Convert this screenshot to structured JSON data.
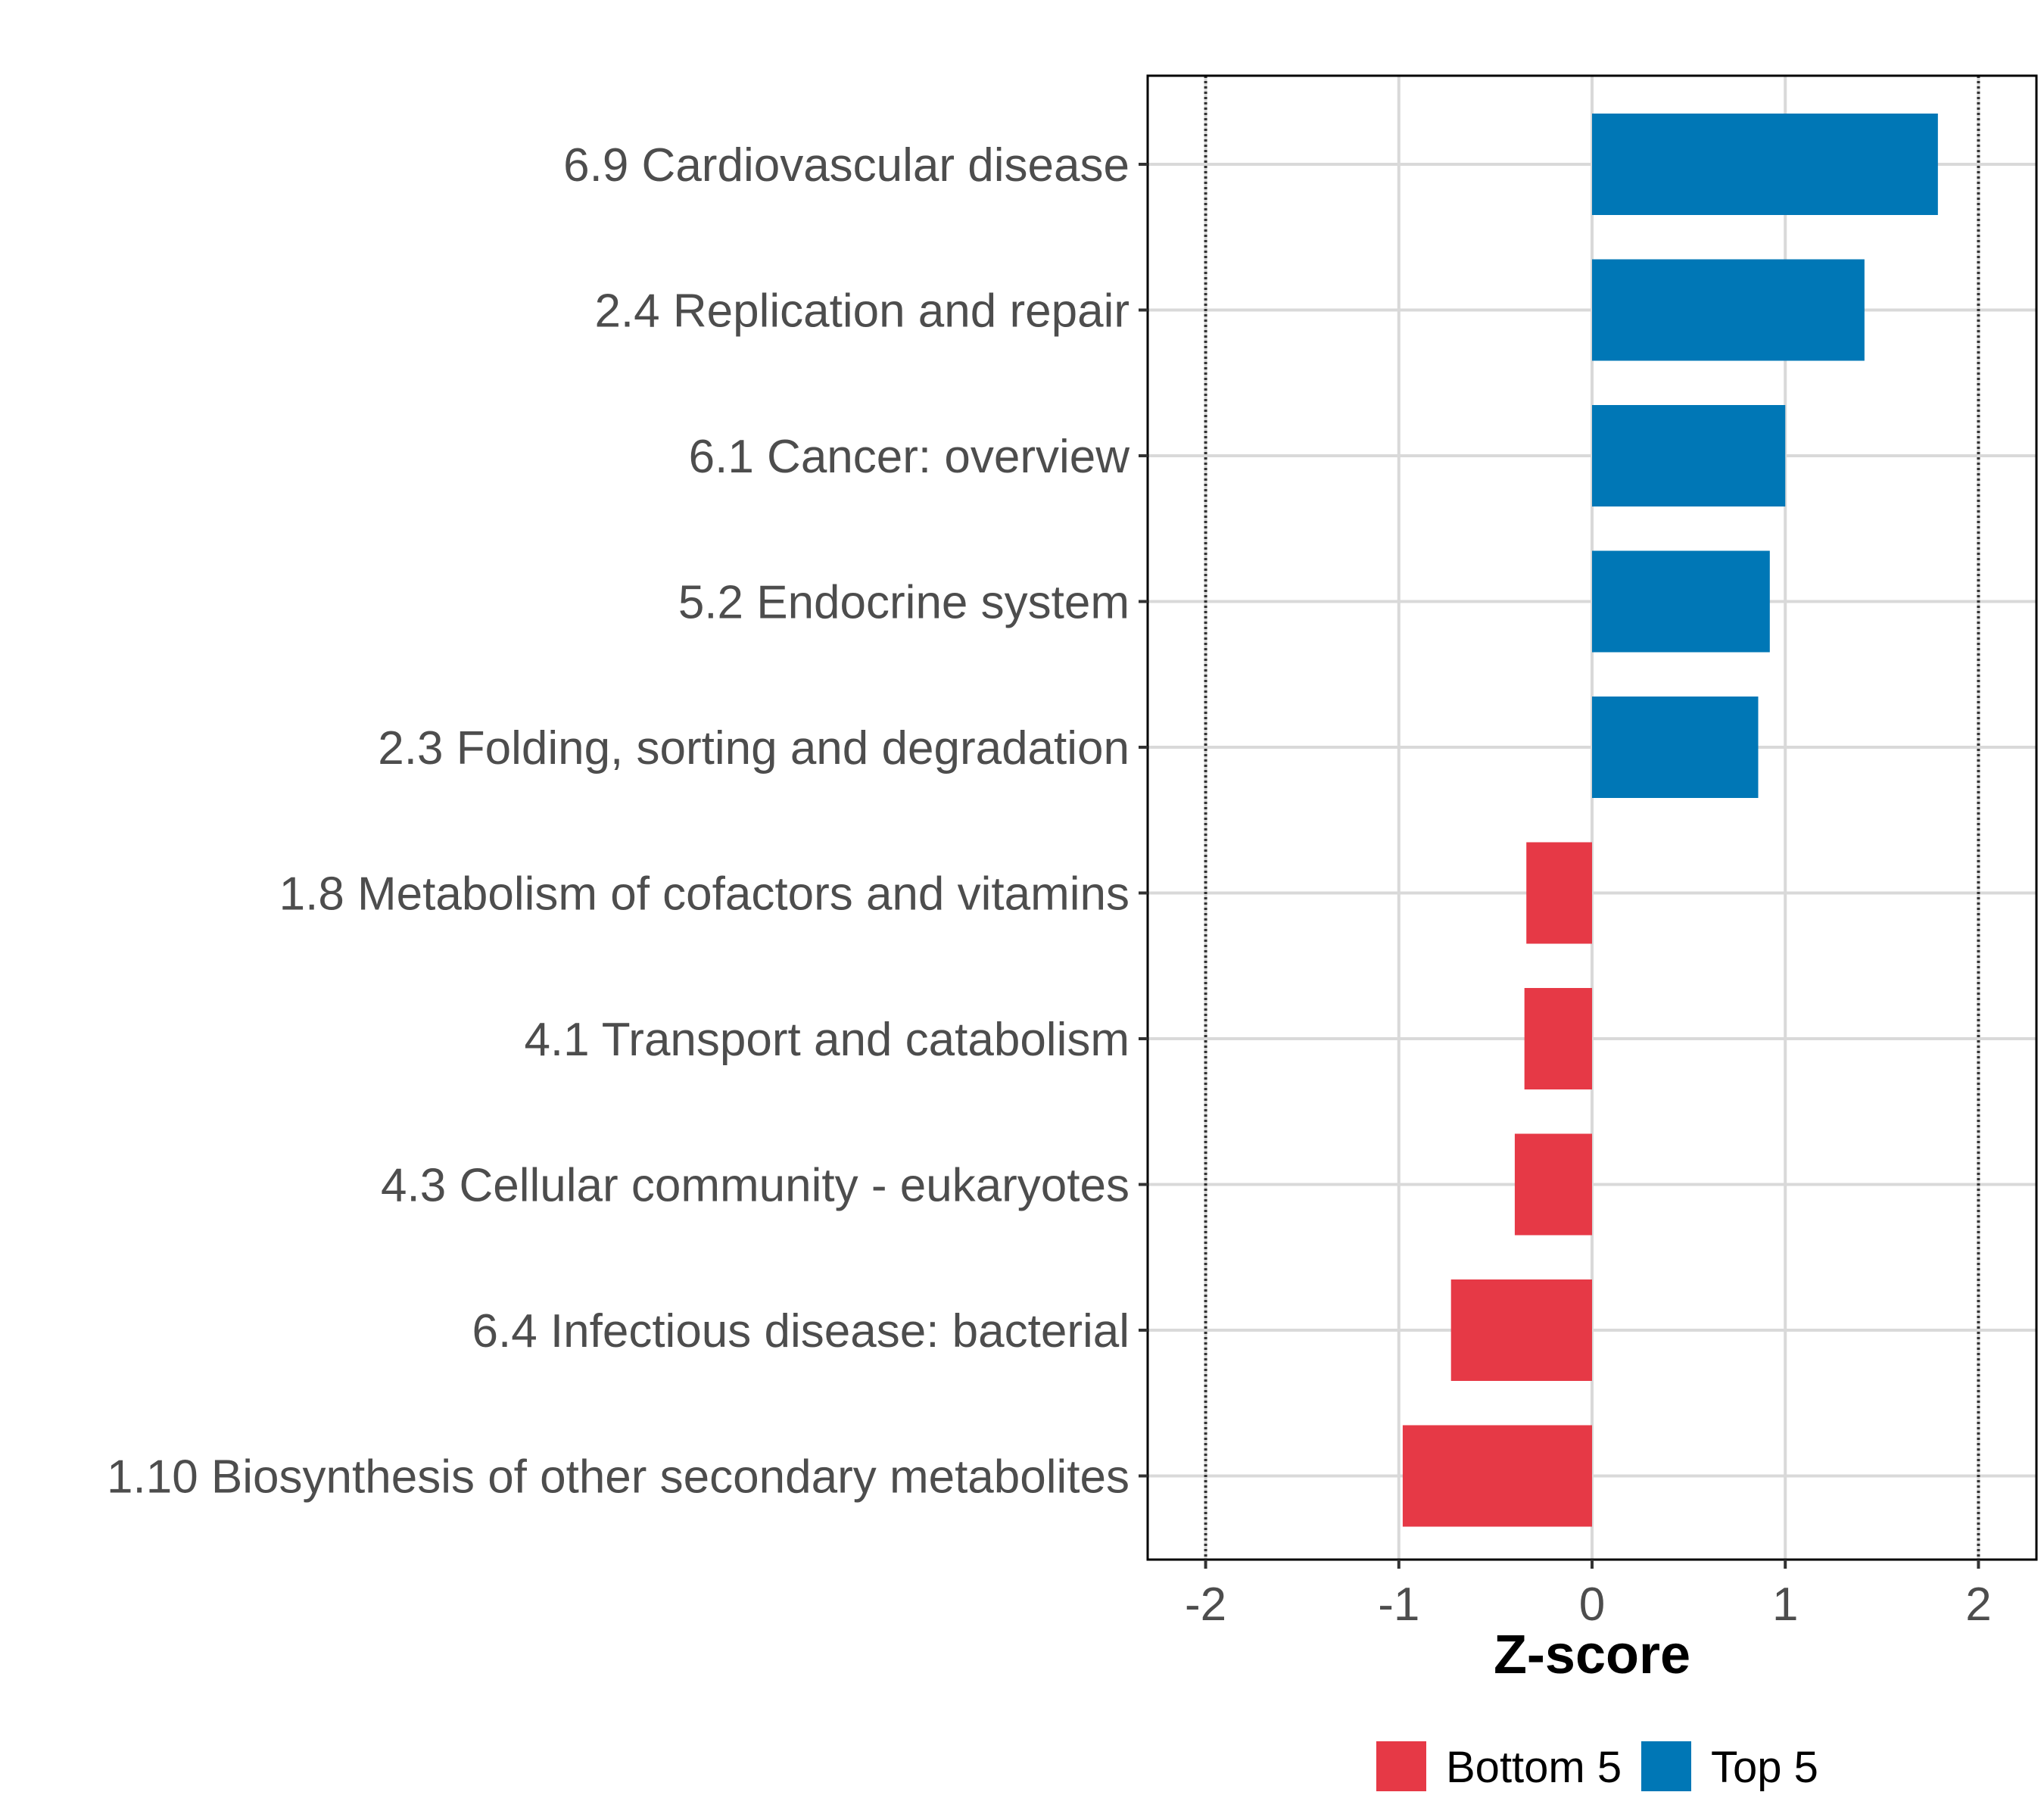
{
  "chart_data": {
    "type": "bar",
    "orientation": "horizontal",
    "categories": [
      "6.9 Cardiovascular disease",
      "2.4 Replication and repair",
      "6.1 Cancer: overview",
      "5.2 Endocrine system",
      "2.3 Folding, sorting and degradation",
      "1.8 Metabolism of cofactors and vitamins",
      "4.1 Transport and catabolism",
      "4.3 Cellular community - eukaryotes",
      "6.4 Infectious disease: bacterial",
      "1.10 Biosynthesis of other secondary metabolites"
    ],
    "values": [
      1.79,
      1.41,
      1.0,
      0.92,
      0.86,
      -0.34,
      -0.35,
      -0.4,
      -0.73,
      -0.98
    ],
    "groups": [
      "Top 5",
      "Top 5",
      "Top 5",
      "Top 5",
      "Top 5",
      "Bottom 5",
      "Bottom 5",
      "Bottom 5",
      "Bottom 5",
      "Bottom 5"
    ],
    "xlabel": "Z-score",
    "ylabel": "",
    "xlim": [
      -2.3,
      2.3
    ],
    "xticks": [
      -2,
      -1,
      0,
      1,
      2
    ],
    "xtick_labels": [
      "-2",
      "-1",
      "0",
      "1",
      "2"
    ],
    "reference_lines": [
      -2,
      2
    ],
    "grid": true,
    "legend": {
      "placement": "bottom",
      "items": [
        {
          "label": "Bottom 5",
          "color": "#e63946"
        },
        {
          "label": "Top 5",
          "color": "#0077b6"
        }
      ]
    },
    "colors": {
      "Top 5": "#0077b6",
      "Bottom 5": "#e63946"
    }
  }
}
